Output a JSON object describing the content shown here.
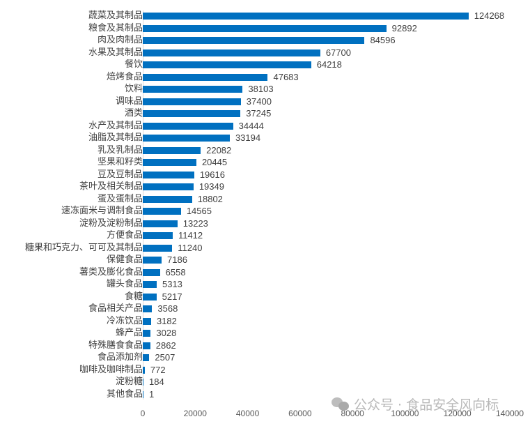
{
  "chart_data": {
    "type": "bar",
    "orientation": "horizontal",
    "title": "",
    "xlabel": "",
    "ylabel": "",
    "xlim": [
      0,
      140000
    ],
    "x_ticks": [
      "0",
      "20000",
      "40000",
      "60000",
      "80000",
      "100000",
      "120000",
      "140000"
    ],
    "grid": false,
    "legend": null,
    "bar_color": "#0070c0",
    "categories": [
      "蔬菜及其制品",
      "粮食及其制品",
      "肉及肉制品",
      "水果及其制品",
      "餐饮",
      "焙烤食品",
      "饮料",
      "调味品",
      "酒类",
      "水产及其制品",
      "油脂及其制品",
      "乳及乳制品",
      "坚果和籽类",
      "豆及豆制品",
      "茶叶及相关制品",
      "蛋及蛋制品",
      "速冻面米与调制食品",
      "淀粉及淀粉制品",
      "方便食品",
      "糖果和巧克力、可可及其制品",
      "保健食品",
      "薯类及膨化食品",
      "罐头食品",
      "食糖",
      "食品相关产品",
      "冷冻饮品",
      "蜂产品",
      "特殊膳食食品",
      "食品添加剂",
      "咖啡及咖啡制品",
      "淀粉糖",
      "其他食品"
    ],
    "values": [
      124268,
      92892,
      84596,
      67700,
      64218,
      47683,
      38103,
      37400,
      37245,
      34444,
      33194,
      22082,
      20445,
      19616,
      19349,
      18802,
      14565,
      13223,
      11412,
      11240,
      7186,
      6558,
      5313,
      5217,
      3568,
      3182,
      3028,
      2862,
      2507,
      772,
      184,
      1
    ]
  },
  "watermark": {
    "icon": "wechat-icon",
    "text": "公众号 · 食品安全风向标"
  }
}
